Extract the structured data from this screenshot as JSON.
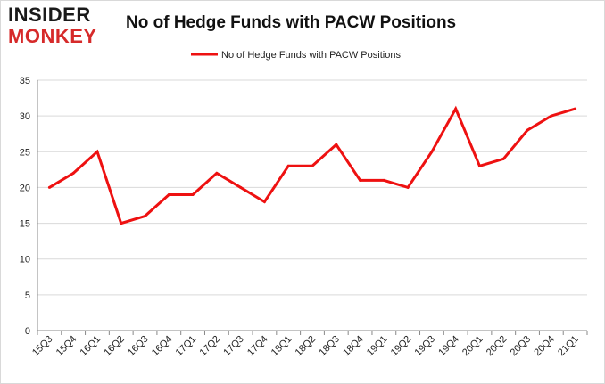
{
  "logo": {
    "line1": "INSIDER",
    "line2": "MONKEY"
  },
  "chart_data": {
    "type": "line",
    "title": "No of Hedge Funds with PACW Positions",
    "xlabel": "",
    "ylabel": "",
    "categories": [
      "15Q3",
      "15Q4",
      "16Q1",
      "16Q2",
      "16Q3",
      "16Q4",
      "17Q1",
      "17Q2",
      "17Q3",
      "17Q4",
      "18Q1",
      "18Q2",
      "18Q3",
      "18Q4",
      "19Q1",
      "19Q2",
      "19Q3",
      "19Q4",
      "20Q1",
      "20Q2",
      "20Q3",
      "20Q4",
      "21Q1"
    ],
    "series": [
      {
        "name": "No of Hedge Funds with PACW Positions",
        "values": [
          20,
          22,
          25,
          15,
          16,
          19,
          19,
          22,
          20,
          18,
          23,
          23,
          26,
          21,
          21,
          20,
          25,
          31,
          23,
          24,
          28,
          30,
          31
        ]
      }
    ],
    "ylim": [
      0,
      35
    ],
    "yticks": [
      0,
      5,
      10,
      15,
      20,
      25,
      30,
      35
    ],
    "grid": true,
    "legend": "top-center",
    "color": "#ee1111"
  }
}
